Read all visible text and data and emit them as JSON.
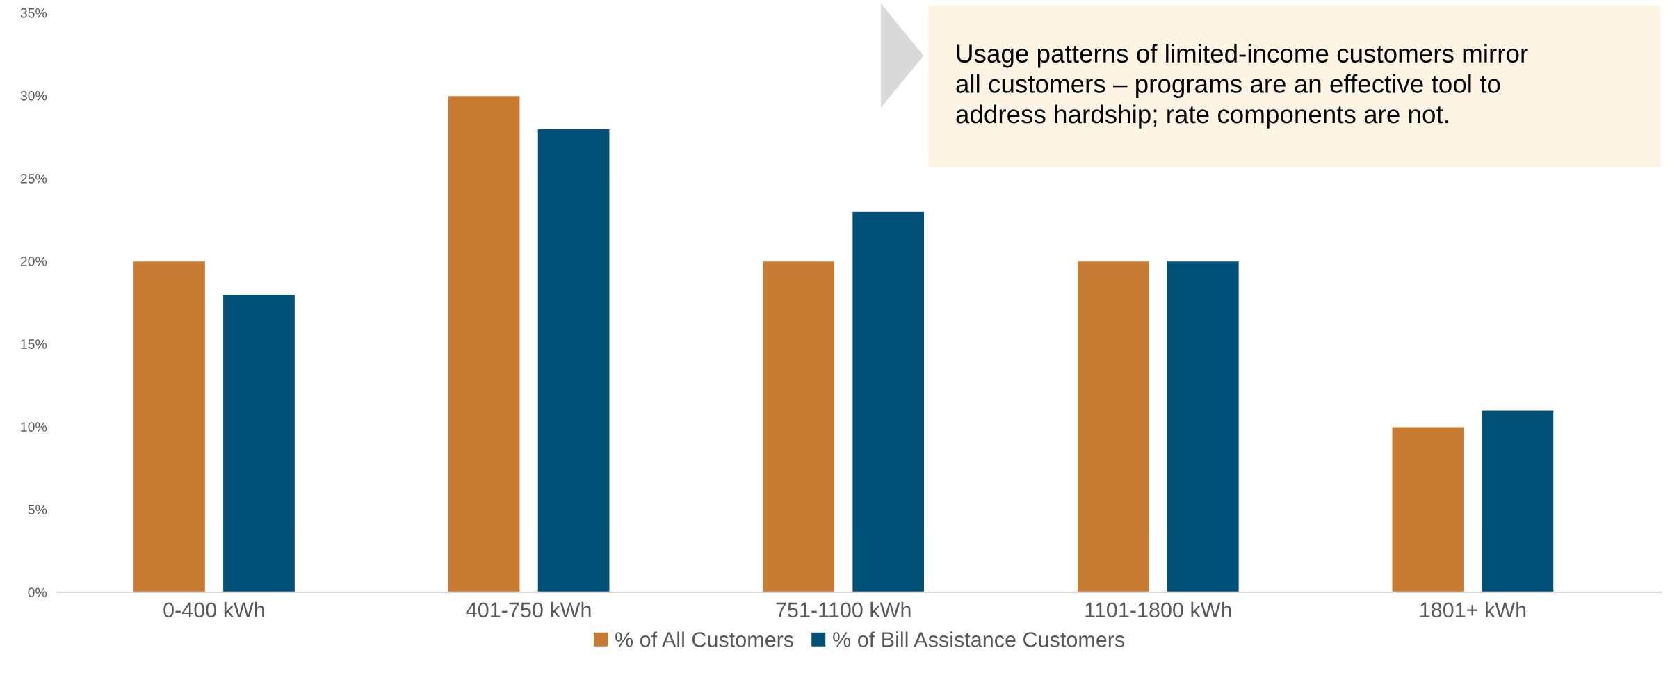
{
  "chart_data": {
    "type": "bar",
    "categories": [
      "0-400 kWh",
      "401-750 kWh",
      "751-1100 kWh",
      "1101-1800 kWh",
      "1801+ kWh"
    ],
    "series": [
      {
        "name": "% of All Customers",
        "color": "#c87b32",
        "values": [
          20,
          30,
          20,
          20,
          10
        ]
      },
      {
        "name": "% of Bill Assistance Customers",
        "color": "#005078",
        "values": [
          18,
          28,
          23,
          20,
          11
        ]
      }
    ],
    "ylim": [
      0,
      35
    ],
    "yticks": [
      {
        "value": 0,
        "label": "0%"
      },
      {
        "value": 5,
        "label": "5%"
      },
      {
        "value": 10,
        "label": "10%"
      },
      {
        "value": 15,
        "label": "15%"
      },
      {
        "value": 20,
        "label": "20%"
      },
      {
        "value": 25,
        "label": "25%"
      },
      {
        "value": 30,
        "label": "30%"
      },
      {
        "value": 35,
        "label": "35%"
      }
    ],
    "grid": false,
    "legend": "bottom",
    "annotations": [
      "Usage patterns of limited-income customers mirror\nall customers – programs are an effective tool to\naddress hardship; rate components are not."
    ]
  }
}
